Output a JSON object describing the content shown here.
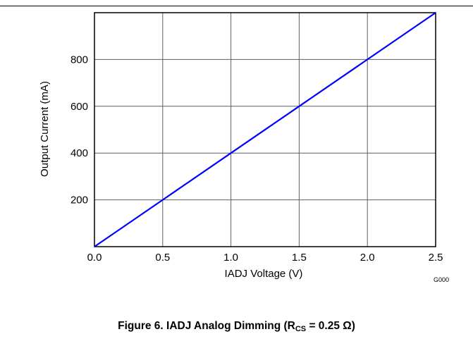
{
  "chart_data": {
    "type": "line",
    "xlabel": "IADJ Voltage (V)",
    "ylabel": "Output Current (mA)",
    "xlim": [
      0,
      2.5
    ],
    "ylim": [
      0,
      1000
    ],
    "x_ticks": [
      0.0,
      0.5,
      1.0,
      1.5,
      2.0,
      2.5
    ],
    "x_tick_labels": [
      "0.0",
      "0.5",
      "1.0",
      "1.5",
      "2.0",
      "2.5"
    ],
    "y_ticks": [
      200,
      400,
      600,
      800
    ],
    "y_tick_labels": [
      "200",
      "400",
      "600",
      "800"
    ],
    "grid": true,
    "series": [
      {
        "color": "#0000ff",
        "x": [
          0.0,
          0.5,
          1.0,
          1.5,
          2.0,
          2.5
        ],
        "y": [
          0,
          200,
          400,
          600,
          800,
          1000
        ]
      }
    ],
    "annotation": "G000"
  },
  "caption": {
    "prefix": "Figure 6. IADJ Analog Dimming (R",
    "subscript": "CS",
    "suffix": " = 0.25 Ω)"
  }
}
